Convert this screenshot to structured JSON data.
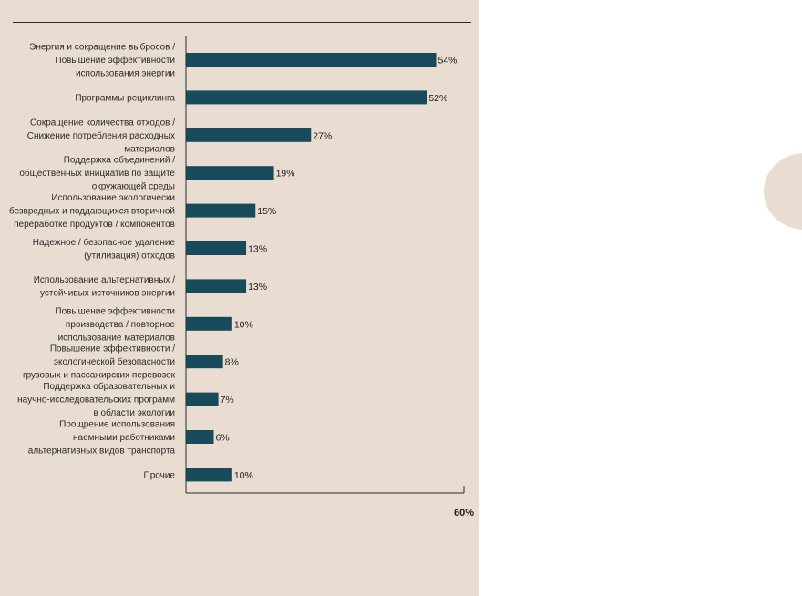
{
  "colors": {
    "panel_bg": "#e8ddd0",
    "bar": "#174b5c",
    "text": "#2b2b2b"
  },
  "chart_data": {
    "type": "bar",
    "orientation": "horizontal",
    "title": "",
    "xlabel": "",
    "ylabel": "",
    "xlim": [
      0,
      60
    ],
    "grid": false,
    "categories": [
      [
        "Энергия и сокращение выбросов /",
        "Повышение эффективности",
        "использования энергии"
      ],
      [
        "Программы рециклинга"
      ],
      [
        "Сокращение количества отходов /",
        "Снижение потребления расходных",
        "материалов"
      ],
      [
        "Поддержка объединений /",
        "общественных инициатив по защите",
        "окружающей среды"
      ],
      [
        "Использование экологически",
        "безвредных и поддающихся вторичной",
        "переработке продуктов / компонентов"
      ],
      [
        "Надежное / безопасное удаление",
        "(утилизация) отходов"
      ],
      [
        "Использование альтернативных /",
        "устойчивых источников энергии"
      ],
      [
        "Повышение эффективности",
        "производства / повторное",
        "использование материалов"
      ],
      [
        "Повышение эффективности /",
        "экологической безопасности",
        "грузовых и пассажирских перевозок"
      ],
      [
        "Поддержка образовательных и",
        "научно-исследовательских программ",
        "в области экологии"
      ],
      [
        "Поощрение использования",
        "наемными работниками",
        "альтернативных видов транспорта"
      ],
      [
        "Прочие"
      ]
    ],
    "values": [
      54,
      52,
      27,
      19,
      15,
      13,
      13,
      10,
      8,
      7,
      6,
      10
    ],
    "value_labels": [
      "54%",
      "52%",
      "27%",
      "19%",
      "15%",
      "13%",
      "13%",
      "10%",
      "8%",
      "7%",
      "6%",
      "10%"
    ],
    "x_ticks": [
      {
        "value": 60,
        "label": "60%"
      }
    ]
  }
}
